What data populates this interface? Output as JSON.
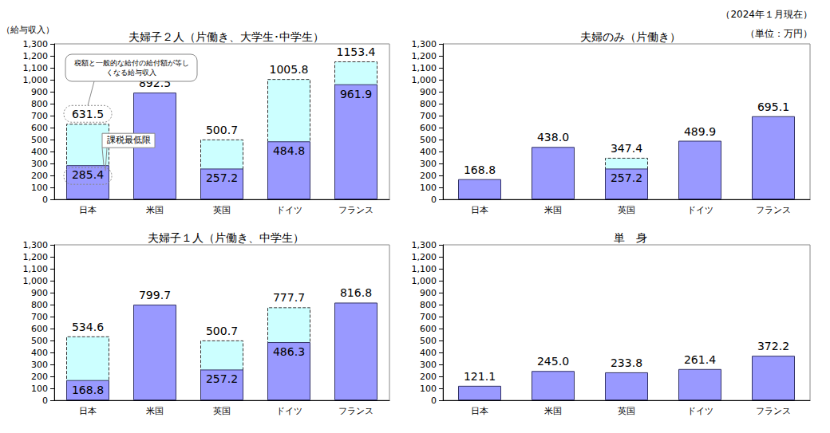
{
  "notes": [
    "（2024年１月現在）",
    "（単位：万円）"
  ],
  "chart_data": [
    {
      "type": "bar",
      "title": "夫婦子２人（片働き、大学生･中学生）",
      "y_label": "（給与収入）",
      "annotations": [
        "税額と一般的な給付の給付額が等しくなる給与収入",
        "課税最低限"
      ],
      "categories": [
        "日本",
        "米国",
        "英国",
        "ドイツ",
        "フランス"
      ],
      "series": [
        {
          "name": "税額と一般的な給付の給付額が等しくなる給与収入",
          "color": "#ccffff",
          "line_style": "dashed",
          "values": [
            631.5,
            null,
            500.7,
            1005.8,
            1153.4
          ]
        },
        {
          "name": "課税最低限",
          "color": "#9999ff",
          "values": [
            285.4,
            892.5,
            257.2,
            484.8,
            961.9
          ]
        }
      ],
      "ylim": [
        0,
        1300
      ],
      "yticks": [
        0,
        100,
        200,
        300,
        400,
        500,
        600,
        700,
        800,
        900,
        {
          "value": 1000,
          "label": "1,000"
        },
        {
          "value": 1100,
          "label": "1,100"
        },
        {
          "value": 1200,
          "label": "1,200"
        },
        {
          "value": 1300,
          "label": "1,300"
        }
      ],
      "grid": false,
      "data_labels": true,
      "stacked": false
    },
    {
      "type": "bar",
      "title": "夫婦のみ（片働き）",
      "categories": [
        "日本",
        "米国",
        "英国",
        "ドイツ",
        "フランス"
      ],
      "series": [
        {
          "name": "税額と一般的な給付の給付額が等しくなる給与収入",
          "color": "#ccffff",
          "line_style": "dashed",
          "values": [
            null,
            null,
            347.4,
            null,
            null
          ]
        },
        {
          "name": "課税最低限",
          "color": "#9999ff",
          "values": [
            168.8,
            438.0,
            257.2,
            489.9,
            695.1
          ],
          "value_labels": [
            "168.8",
            "438.0",
            "257.2",
            "489.9",
            "695.1"
          ]
        }
      ],
      "ylim": [
        0,
        1300
      ],
      "yticks": [
        0,
        100,
        200,
        300,
        400,
        500,
        600,
        700,
        800,
        900,
        {
          "value": 1000,
          "label": "1,000"
        },
        {
          "value": 1100,
          "label": "1,100"
        },
        {
          "value": 1200,
          "label": "1,200"
        },
        {
          "value": 1300,
          "label": "1,300"
        }
      ],
      "grid": false,
      "data_labels": true,
      "stacked": false
    },
    {
      "type": "bar",
      "title": "夫婦子１人（片働き、中学生）",
      "categories": [
        "日本",
        "米国",
        "英国",
        "ドイツ",
        "フランス"
      ],
      "series": [
        {
          "name": "税額と一般的な給付の給付額が等しくなる給与収入",
          "color": "#ccffff",
          "line_style": "dashed",
          "values": [
            534.6,
            null,
            500.7,
            777.7,
            null
          ]
        },
        {
          "name": "課税最低限",
          "color": "#9999ff",
          "values": [
            168.8,
            799.7,
            257.2,
            486.3,
            816.8
          ]
        }
      ],
      "ylim": [
        0,
        1300
      ],
      "yticks": [
        0,
        100,
        200,
        300,
        400,
        500,
        600,
        700,
        800,
        900,
        {
          "value": 1000,
          "label": "1,000"
        },
        {
          "value": 1100,
          "label": "1,100"
        },
        {
          "value": 1200,
          "label": "1,200"
        },
        {
          "value": 1300,
          "label": "1,300"
        }
      ],
      "grid": false,
      "data_labels": true,
      "stacked": false
    },
    {
      "type": "bar",
      "title": "単　身",
      "categories": [
        "日本",
        "米国",
        "英国",
        "ドイツ",
        "フランス"
      ],
      "series": [
        {
          "name": "課税最低限",
          "color": "#9999ff",
          "values": [
            121.1,
            245.0,
            233.8,
            261.4,
            372.2
          ],
          "value_labels": [
            "121.1",
            "245.0",
            "233.8",
            "261.4",
            "372.2"
          ]
        }
      ],
      "ylim": [
        0,
        1300
      ],
      "yticks": [
        0,
        100,
        200,
        300,
        400,
        500,
        600,
        700,
        800,
        900,
        {
          "value": 1000,
          "label": "1,000"
        },
        {
          "value": 1100,
          "label": "1,100"
        },
        {
          "value": 1200,
          "label": "1,200"
        },
        {
          "value": 1300,
          "label": "1,300"
        }
      ],
      "grid": false,
      "data_labels": true,
      "stacked": false
    }
  ]
}
